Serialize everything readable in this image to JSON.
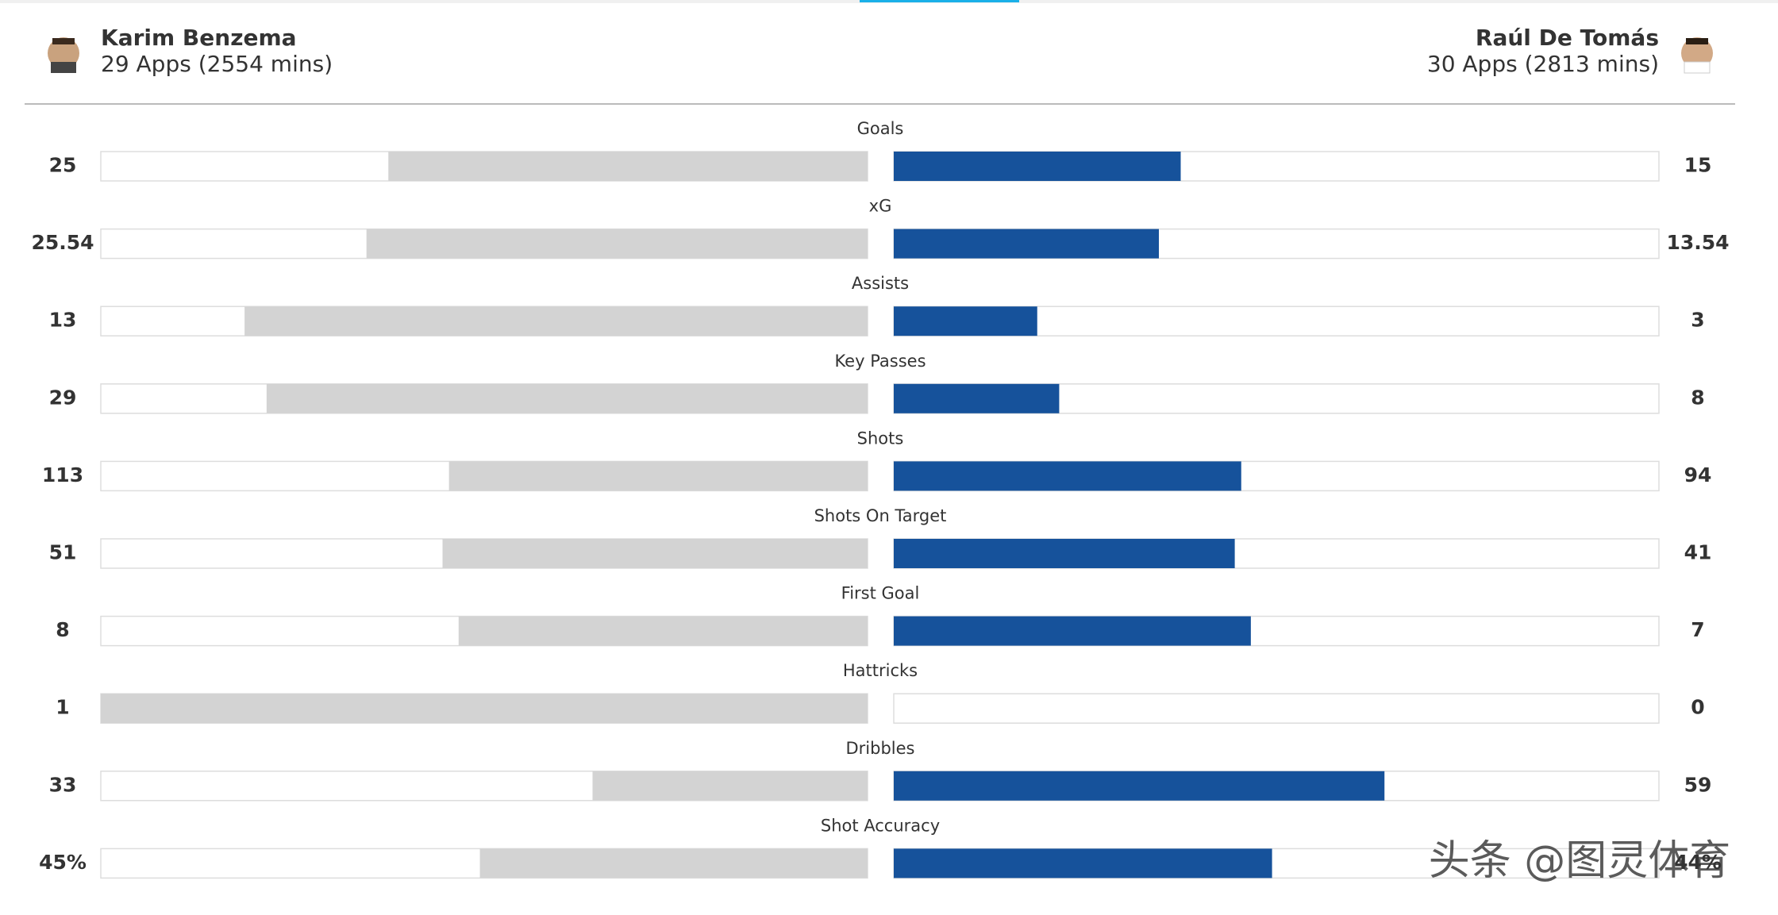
{
  "players": {
    "left": {
      "name": "Karim Benzema",
      "apps": "29 Apps (2554 mins)"
    },
    "right": {
      "name": "Raúl De Tomás",
      "apps": "30 Apps (2813 mins)"
    }
  },
  "stats": [
    {
      "label": "Goals",
      "left": 25,
      "right": 15
    },
    {
      "label": "xG",
      "left": 25.54,
      "right": 13.54
    },
    {
      "label": "Assists",
      "left": 13,
      "right": 3
    },
    {
      "label": "Key Passes",
      "left": 29,
      "right": 8
    },
    {
      "label": "Shots",
      "left": 113,
      "right": 94
    },
    {
      "label": "Shots On Target",
      "left": 51,
      "right": 41
    },
    {
      "label": "First Goal",
      "left": 8,
      "right": 7
    },
    {
      "label": "Hattricks",
      "left": 1,
      "right": 0
    },
    {
      "label": "Dribbles",
      "left": 33,
      "right": 59
    },
    {
      "label": "Shot Accuracy",
      "left": 45,
      "right": 44,
      "left_label": "45%",
      "right_label": "44%"
    }
  ],
  "colors": {
    "left": "#d3d3d3",
    "right": "#16529b"
  },
  "watermark": "头条 @图灵体育"
}
